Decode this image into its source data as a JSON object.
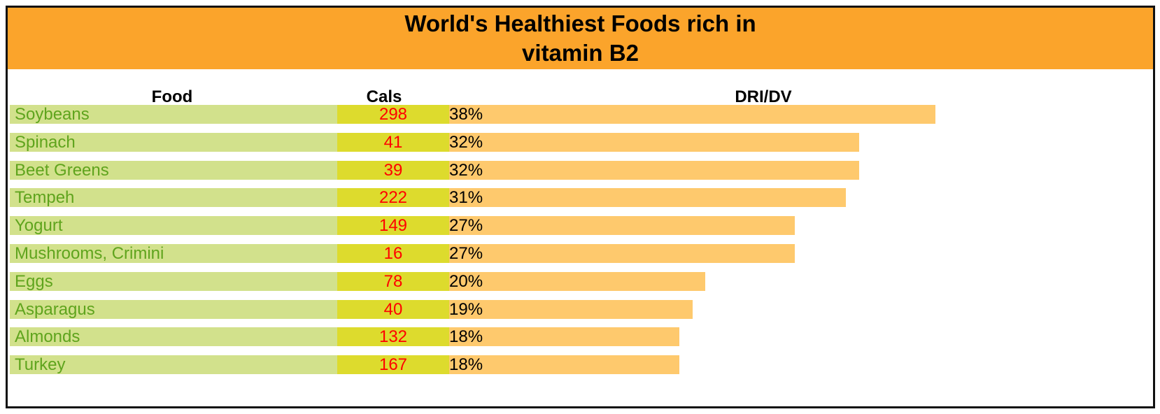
{
  "title": "World's Healthiest Foods rich in vitamin B2",
  "columns": {
    "food": "Food",
    "cals": "Cals",
    "dri": "DRI/DV"
  },
  "colors": {
    "header_bg": "#fba42b",
    "food_bg": "#d2e18c",
    "food_text": "#5fa41d",
    "cals_bg": "#dddb2d",
    "cals_text": "#ff0000",
    "dri_bar": "#fec96d"
  },
  "chart_data": {
    "type": "bar",
    "title": "World's Healthiest Foods rich in vitamin B2",
    "categories": [
      "Soybeans",
      "Spinach",
      "Beet Greens",
      "Tempeh",
      "Yogurt",
      "Mushrooms, Crimini",
      "Eggs",
      "Asparagus",
      "Almonds",
      "Turkey"
    ],
    "cals": [
      298,
      41,
      39,
      222,
      149,
      16,
      78,
      40,
      132,
      167
    ],
    "values": [
      38,
      32,
      32,
      31,
      27,
      27,
      20,
      19,
      18,
      18
    ],
    "value_labels": [
      "38%",
      "32%",
      "32%",
      "31%",
      "27%",
      "27%",
      "20%",
      "19%",
      "18%",
      "18%"
    ],
    "unit": "%",
    "orientation": "horizontal",
    "grid": false
  }
}
